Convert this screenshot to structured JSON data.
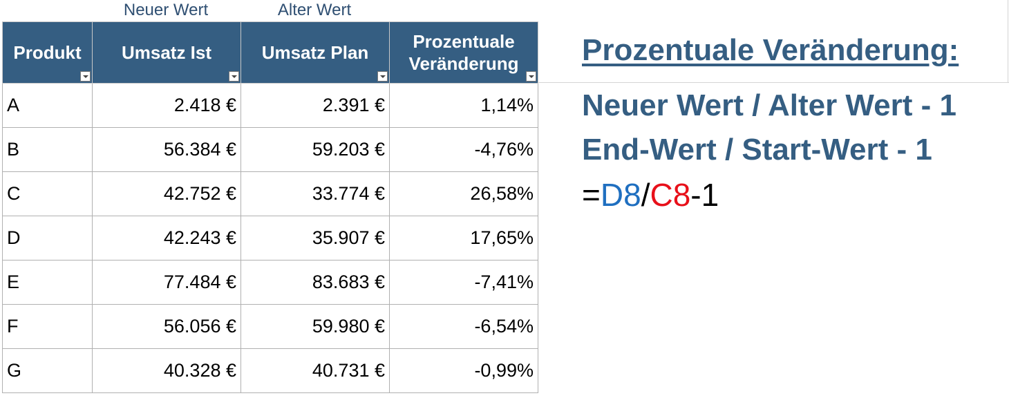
{
  "annotations": {
    "new_value": "Neuer Wert",
    "old_value": "Alter Wert"
  },
  "table": {
    "headers": [
      {
        "label": "Produkt"
      },
      {
        "label": "Umsatz Ist"
      },
      {
        "label": "Umsatz Plan"
      },
      {
        "label": "Prozentuale Veränderung"
      }
    ],
    "rows": [
      {
        "produkt": "A",
        "ist": "2.418 €",
        "plan": "2.391 €",
        "change": "1,14%"
      },
      {
        "produkt": "B",
        "ist": "56.384 €",
        "plan": "59.203 €",
        "change": "-4,76%"
      },
      {
        "produkt": "C",
        "ist": "42.752 €",
        "plan": "33.774 €",
        "change": "26,58%"
      },
      {
        "produkt": "D",
        "ist": "42.243 €",
        "plan": "35.907 €",
        "change": "17,65%"
      },
      {
        "produkt": "E",
        "ist": "77.484 €",
        "plan": "83.683 €",
        "change": "-7,41%"
      },
      {
        "produkt": "F",
        "ist": "56.056 €",
        "plan": "59.980 €",
        "change": "-6,54%"
      },
      {
        "produkt": "G",
        "ist": "40.328 €",
        "plan": "40.731 €",
        "change": "-0,99%"
      }
    ]
  },
  "explanation": {
    "title": "Prozentuale Veränderung:",
    "line1": "Neuer Wert / Alter Wert - 1",
    "line2": "End-Wert / Start-Wert - 1",
    "formula": {
      "eq": "=",
      "ref_new": "D8",
      "slash": "/",
      "ref_old": "C8",
      "minus_one": "-1"
    }
  },
  "colors": {
    "header_bg": "#355e82",
    "text_blue": "#355e82",
    "ref_new": "#1f6fc0",
    "ref_old": "#e8101a"
  },
  "icons": {
    "filter": "filter-dropdown-icon"
  }
}
